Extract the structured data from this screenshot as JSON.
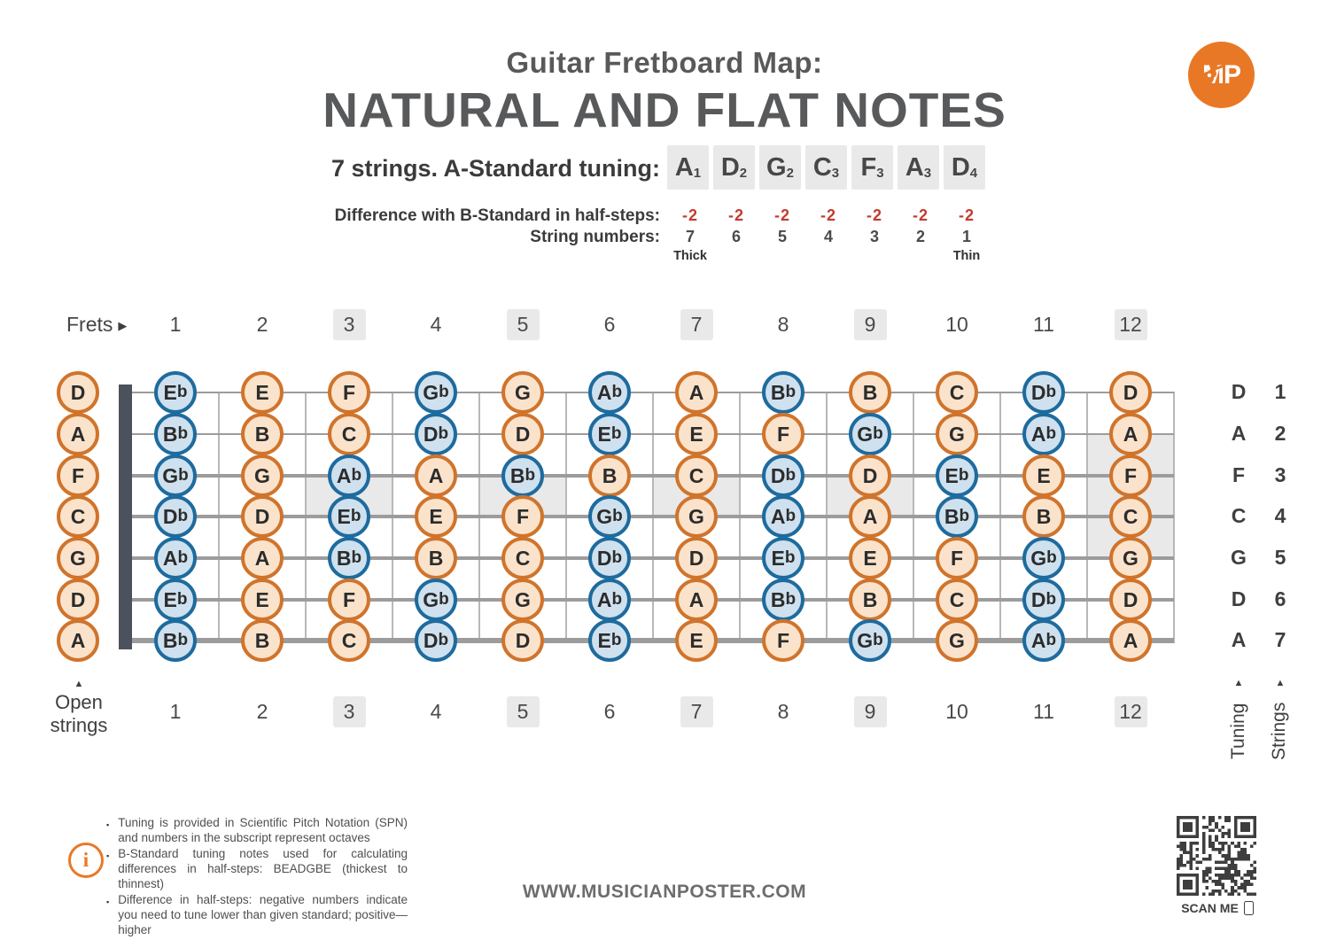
{
  "header": {
    "title_line1": "Guitar Fretboard Map:",
    "title_line2": "NATURAL AND FLAT NOTES",
    "logo_text": "MP",
    "tuning_label": "7 strings. A-Standard tuning:",
    "tuning_notes": [
      {
        "note": "A",
        "octave": "1"
      },
      {
        "note": "D",
        "octave": "2"
      },
      {
        "note": "G",
        "octave": "2"
      },
      {
        "note": "C",
        "octave": "3"
      },
      {
        "note": "F",
        "octave": "3"
      },
      {
        "note": "A",
        "octave": "3"
      },
      {
        "note": "D",
        "octave": "4"
      }
    ],
    "difference_label": "Difference with B-Standard in half-steps:",
    "differences": [
      "-2",
      "-2",
      "-2",
      "-2",
      "-2",
      "-2",
      "-2"
    ],
    "string_numbers_label": "String numbers:",
    "string_numbers": [
      "7",
      "6",
      "5",
      "4",
      "3",
      "2",
      "1"
    ],
    "thick_label": "Thick",
    "thin_label": "Thin"
  },
  "fretboard": {
    "frets_label": "Frets",
    "fret_numbers": [
      "1",
      "2",
      "3",
      "4",
      "5",
      "6",
      "7",
      "8",
      "9",
      "10",
      "11",
      "12"
    ],
    "badge_frets": [
      3,
      5,
      7,
      9,
      12
    ],
    "markers": [
      {
        "fret": 3,
        "between": [
          3,
          4
        ]
      },
      {
        "fret": 5,
        "between": [
          3,
          4
        ]
      },
      {
        "fret": 7,
        "between": [
          3,
          4
        ]
      },
      {
        "fret": 9,
        "between": [
          3,
          4
        ]
      },
      {
        "fret": 12,
        "between": [
          2,
          5
        ]
      }
    ],
    "strings": [
      {
        "open": "D",
        "number": "1",
        "notes": [
          "Eb",
          "E",
          "F",
          "Gb",
          "G",
          "Ab",
          "A",
          "Bb",
          "B",
          "C",
          "Db",
          "D"
        ]
      },
      {
        "open": "A",
        "number": "2",
        "notes": [
          "Bb",
          "B",
          "C",
          "Db",
          "D",
          "Eb",
          "E",
          "F",
          "Gb",
          "G",
          "Ab",
          "A"
        ]
      },
      {
        "open": "F",
        "number": "3",
        "notes": [
          "Gb",
          "G",
          "Ab",
          "A",
          "Bb",
          "B",
          "C",
          "Db",
          "D",
          "Eb",
          "E",
          "F"
        ]
      },
      {
        "open": "C",
        "number": "4",
        "notes": [
          "Db",
          "D",
          "Eb",
          "E",
          "F",
          "Gb",
          "G",
          "Ab",
          "A",
          "Bb",
          "B",
          "C"
        ]
      },
      {
        "open": "G",
        "number": "5",
        "notes": [
          "Ab",
          "A",
          "Bb",
          "B",
          "C",
          "Db",
          "D",
          "Eb",
          "E",
          "F",
          "Gb",
          "G"
        ]
      },
      {
        "open": "D",
        "number": "6",
        "notes": [
          "Eb",
          "E",
          "F",
          "Gb",
          "G",
          "Ab",
          "A",
          "Bb",
          "B",
          "C",
          "Db",
          "D"
        ]
      },
      {
        "open": "A",
        "number": "7",
        "notes": [
          "Bb",
          "B",
          "C",
          "Db",
          "D",
          "Eb",
          "E",
          "F",
          "Gb",
          "G",
          "Ab",
          "A"
        ]
      }
    ],
    "open_strings_label": "Open strings",
    "tuning_axis_label": "Tuning",
    "strings_axis_label": "Strings"
  },
  "colors": {
    "natural_border": "#d0742c",
    "natural_fill": "#fbe3cb",
    "flat_border": "#1e6b9e",
    "flat_fill": "#cfe1ee",
    "accent_orange": "#e97826",
    "difference_red": "#c23b2e",
    "title_gray": "#58595b",
    "marker_gray": "#e9e9e9"
  },
  "footer": {
    "notes": [
      "Tuning is provided in Scientific Pitch Notation (SPN) and numbers in the subscript represent octaves",
      "B-Standard tuning notes used for calculating differences in half-steps: BEADGBE (thickest to thinnest)",
      "Difference in half-steps: negative numbers indicate you need to tune lower than given standard; positive—higher"
    ],
    "website": "WWW.MUSICIANPOSTER.COM",
    "scan_label": "SCAN ME"
  }
}
